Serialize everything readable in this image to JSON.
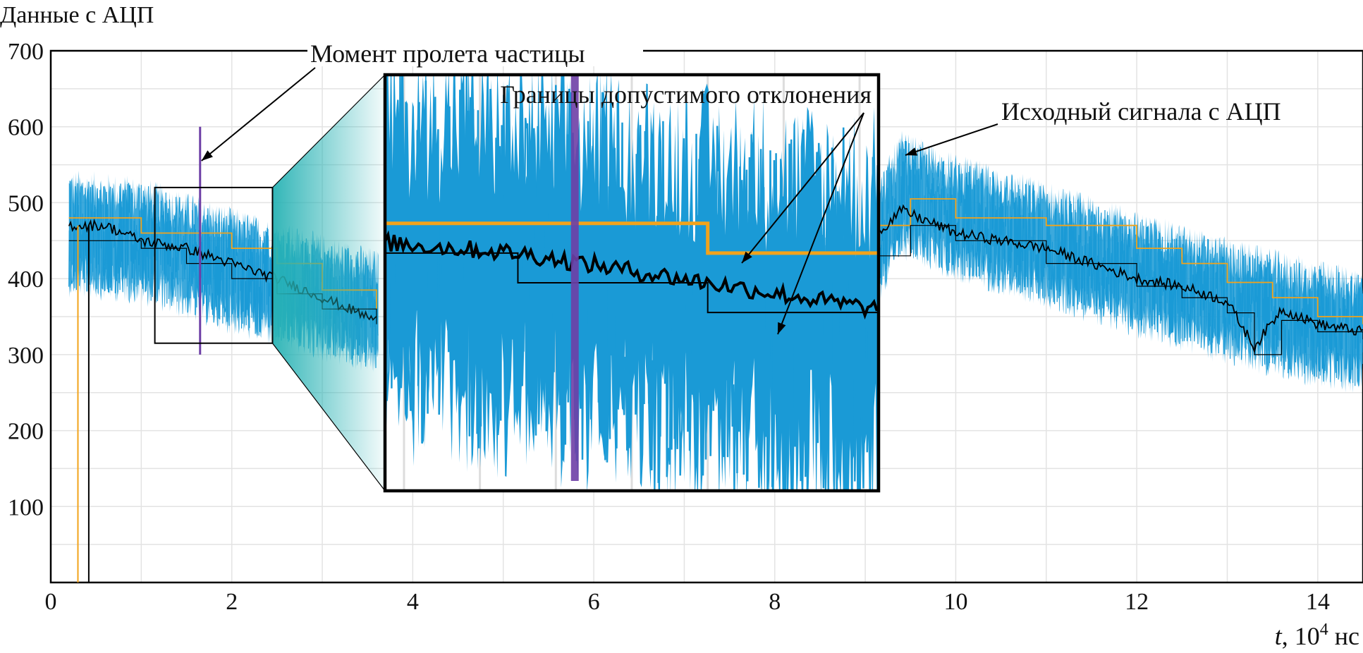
{
  "chart_data": {
    "type": "line",
    "ylabel": "Данные с АЦП",
    "xlabel": {
      "var": "t",
      "unit_prefix": ", 10",
      "unit_exp": "4",
      "unit_suffix": " нс"
    },
    "xlim": [
      0,
      14.5
    ],
    "ylim": [
      0,
      700
    ],
    "x_ticks": [
      0,
      2,
      4,
      6,
      8,
      10,
      12,
      14
    ],
    "y_ticks": [
      100,
      200,
      300,
      400,
      500,
      600,
      700
    ],
    "grid": true,
    "colors": {
      "signal": "#1a9ad6",
      "upper_bound": "#f2a31b",
      "filtered": "#000000",
      "lower_bound": "#000000",
      "particle_marker": "#6e3fa6",
      "zoom_fill": "#27b2b4"
    },
    "series": [
      {
        "role": "signal",
        "x": [
          0.2,
          1,
          2,
          3,
          3.6,
          9.1,
          9.4,
          10,
          11,
          12,
          13,
          14,
          14.5
        ],
        "values": [
          460,
          450,
          410,
          375,
          355,
          440,
          510,
          480,
          445,
          405,
          370,
          340,
          330
        ]
      },
      {
        "role": "upper_bound",
        "x": [
          0.2,
          0.8,
          1.0,
          1.6,
          2.0,
          2.5,
          3.0,
          3.6,
          9.1,
          9.5,
          10,
          11,
          12,
          12.5,
          13,
          13.5,
          14,
          14.5
        ],
        "values": [
          480,
          480,
          460,
          460,
          440,
          420,
          385,
          360,
          470,
          505,
          480,
          470,
          440,
          420,
          395,
          375,
          350,
          340
        ]
      },
      {
        "role": "filtered",
        "x": [
          0.2,
          0.6,
          1.0,
          1.5,
          2.0,
          2.5,
          3.0,
          3.6,
          9.1,
          9.4,
          10,
          11,
          12,
          12.5,
          13,
          13.3,
          13.6,
          14,
          14.5
        ],
        "values": [
          470,
          470,
          450,
          440,
          420,
          400,
          375,
          345,
          455,
          490,
          460,
          440,
          400,
          390,
          370,
          310,
          360,
          340,
          330
        ]
      },
      {
        "role": "lower_bound",
        "x": [
          0.2,
          0.6,
          1.0,
          1.5,
          2.0,
          2.5,
          3.0,
          3.6,
          9.1,
          9.5,
          10,
          11,
          12,
          12.5,
          13,
          13.3,
          13.6,
          14,
          14.5
        ],
        "values": [
          450,
          450,
          440,
          420,
          400,
          380,
          360,
          340,
          430,
          470,
          450,
          420,
          390,
          375,
          355,
          300,
          345,
          330,
          320
        ]
      }
    ],
    "verticals": [
      {
        "role": "upper_bound",
        "x": 0.3
      },
      {
        "role": "lower_bound",
        "x": 0.42
      },
      {
        "role": "particle_marker",
        "x": 1.65,
        "y": [
          300,
          600
        ]
      }
    ],
    "zoom_region": {
      "x": [
        1.15,
        2.45
      ],
      "y": [
        315,
        520
      ]
    },
    "annotations": {
      "particle": "Момент пролета частицы",
      "bounds": "Границы допустимого отклонения",
      "signal": "Исходный сигнала с АЦП"
    }
  }
}
